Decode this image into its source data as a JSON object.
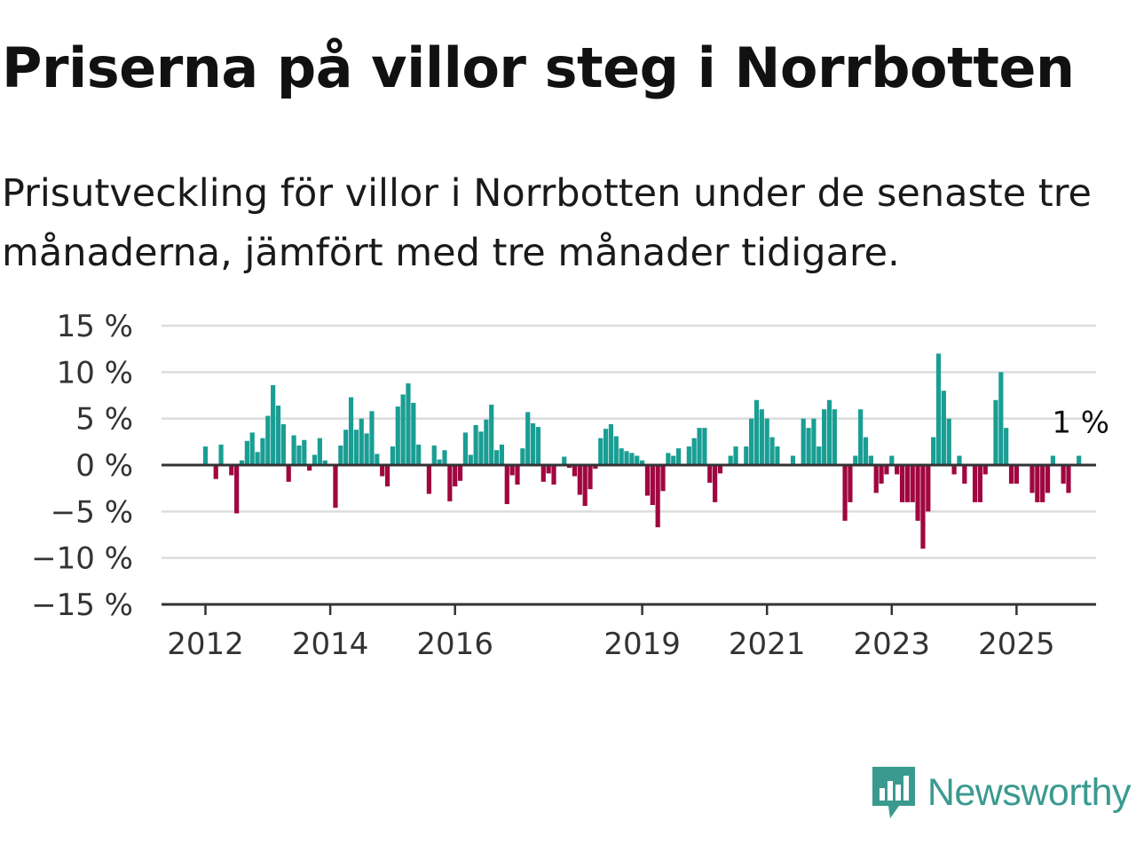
{
  "header": {
    "title": "Priserna på villor steg i Norrbotten",
    "subtitle": "Prisutveckling för villor i Norrbotten under de senaste tre månaderna, jämfört med tre månader tidigare."
  },
  "brand": {
    "name": "Newsworthy",
    "icon": "newsworthy-logo-icon",
    "color": "#3a9a8f"
  },
  "colors": {
    "positive": "#1a9e94",
    "negative": "#a0063f",
    "grid": "#dcdcdc",
    "axis": "#333333"
  },
  "chart_data": {
    "type": "bar",
    "title": "",
    "xlabel": "",
    "ylabel": "",
    "ylim": [
      -15,
      15
    ],
    "y_ticks": [
      15,
      10,
      5,
      0,
      -5,
      -10,
      -15
    ],
    "y_tick_labels": [
      "15 %",
      "10 %",
      "5 %",
      "0 %",
      "−5 %",
      "−10 %",
      "−15 %"
    ],
    "x_ticks": [
      "2012",
      "2014",
      "2016",
      "2019",
      "2021",
      "2023",
      "2025"
    ],
    "start": "2011-01",
    "frequency": "monthly",
    "grid": true,
    "last_value_label": "1 %",
    "values": [
      0,
      0,
      0,
      0,
      0,
      0,
      0,
      0,
      0,
      0,
      0,
      0,
      2,
      0,
      -1.5,
      2.2,
      0,
      -1.1,
      -5.2,
      0.5,
      2.6,
      3.5,
      1.4,
      2.9,
      5.3,
      8.6,
      6.4,
      4.4,
      -1.8,
      3.2,
      2.1,
      2.7,
      -0.6,
      1.1,
      2.9,
      0.5,
      0,
      -4.6,
      2.1,
      3.8,
      7.3,
      3.8,
      5,
      3.4,
      5.8,
      1.2,
      -1.2,
      -2.3,
      2,
      6.3,
      7.6,
      8.8,
      6.7,
      2.2,
      0,
      -3.1,
      2.1,
      0.6,
      1.6,
      -3.9,
      -2.3,
      -1.7,
      3.5,
      1.1,
      4.3,
      3.6,
      4.9,
      6.5,
      1.6,
      2.2,
      -4.2,
      -1.1,
      -2.1,
      1.8,
      5.7,
      4.5,
      4.1,
      -1.8,
      -0.9,
      -2.1,
      0,
      0.9,
      -0.3,
      -1.2,
      -3.2,
      -4.4,
      -2.6,
      -0.4,
      2.9,
      3.9,
      4.4,
      3.1,
      1.8,
      1.5,
      1.3,
      1.0,
      0.5,
      -3.3,
      -4.3,
      -6.7,
      -2.8,
      1.3,
      1.0,
      1.8,
      0,
      2.0,
      2.9,
      4.0,
      4.0,
      -1.9,
      -4.0,
      -0.9,
      0,
      1.0,
      2.0,
      0,
      2.0,
      5.0,
      7.0,
      6.0,
      5.0,
      3.0,
      2.0,
      0,
      0,
      1.0,
      0,
      5.0,
      4.0,
      5.0,
      2.0,
      6.0,
      7.0,
      6.0,
      0,
      -6.0,
      -4.0,
      1.0,
      6.0,
      3.0,
      1.0,
      -3.0,
      -2.0,
      -1.0,
      1.0,
      -1.0,
      -4.0,
      -4.0,
      -4.0,
      -6.0,
      -9.0,
      -5.0,
      3.0,
      12.0,
      8.0,
      5.0,
      -1.0,
      1.0,
      -2.0,
      0,
      -4.0,
      -4.0,
      -1.0,
      0,
      7.0,
      10.0,
      4.0,
      -2.0,
      -2.0,
      0,
      0,
      -3.0,
      -4.0,
      -4.0,
      -3.0,
      1.0,
      0,
      -2.0,
      -3.0,
      0,
      1.0
    ]
  }
}
